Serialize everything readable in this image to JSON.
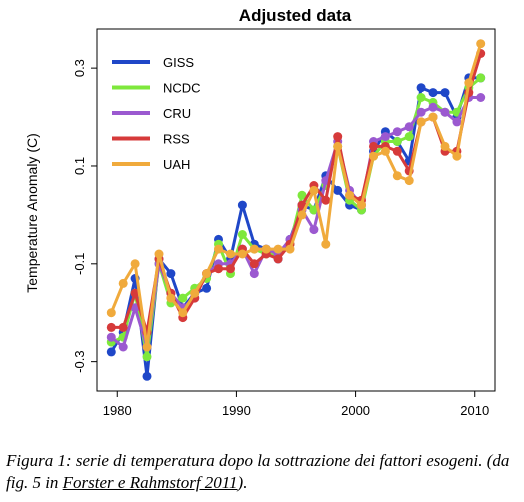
{
  "chart_data": {
    "type": "line",
    "title": "Adjusted data",
    "xlabel": "",
    "ylabel": "Temperature Anomaly (C)",
    "xlim": [
      1978.3,
      2011.7
    ],
    "ylim": [
      -0.36,
      0.38
    ],
    "x_ticks": [
      1980,
      1990,
      2000,
      2010
    ],
    "y_ticks": [
      -0.3,
      -0.1,
      0.1,
      0.3
    ],
    "x_tick_labels": [
      "1980",
      "1990",
      "2000",
      "2010"
    ],
    "y_tick_labels": [
      "-0.3",
      "-0.1",
      "0.1",
      "0.3"
    ],
    "grid": false,
    "legend_position": "top-left",
    "x": [
      1979.5,
      1980.5,
      1981.5,
      1982.5,
      1983.5,
      1984.5,
      1985.5,
      1986.5,
      1987.5,
      1988.5,
      1989.5,
      1990.5,
      1991.5,
      1992.5,
      1993.5,
      1994.5,
      1995.5,
      1996.5,
      1997.5,
      1998.5,
      1999.5,
      2000.5,
      2001.5,
      2002.5,
      2003.5,
      2004.5,
      2005.5,
      2006.5,
      2007.5,
      2008.5,
      2009.5,
      2010.5
    ],
    "series": [
      {
        "name": "GISS",
        "color": "#1f47c8",
        "values": [
          -0.28,
          -0.24,
          -0.13,
          -0.33,
          -0.09,
          -0.12,
          -0.19,
          -0.16,
          -0.15,
          -0.05,
          -0.09,
          0.02,
          -0.06,
          -0.07,
          -0.09,
          -0.05,
          0.02,
          0.01,
          0.08,
          0.05,
          0.02,
          0.01,
          0.13,
          0.17,
          0.15,
          0.11,
          0.26,
          0.25,
          0.25,
          0.2,
          0.28,
          0.28
        ]
      },
      {
        "name": "NCDC",
        "color": "#7ee83c",
        "values": [
          -0.26,
          -0.25,
          -0.16,
          -0.29,
          -0.1,
          -0.18,
          -0.17,
          -0.15,
          -0.13,
          -0.06,
          -0.12,
          -0.04,
          -0.07,
          -0.08,
          -0.08,
          -0.06,
          0.04,
          0.01,
          0.06,
          0.14,
          0.03,
          0.01,
          0.12,
          0.15,
          0.15,
          0.16,
          0.24,
          0.23,
          0.21,
          0.21,
          0.26,
          0.28
        ]
      },
      {
        "name": "CRU",
        "color": "#9b59d0",
        "values": [
          -0.25,
          -0.27,
          -0.19,
          -0.27,
          -0.1,
          -0.16,
          -0.19,
          -0.17,
          -0.12,
          -0.1,
          -0.1,
          -0.07,
          -0.12,
          -0.07,
          -0.08,
          -0.05,
          0.01,
          -0.03,
          0.07,
          0.15,
          0.05,
          0.02,
          0.15,
          0.16,
          0.17,
          0.18,
          0.21,
          0.22,
          0.21,
          0.19,
          0.24,
          0.24
        ]
      },
      {
        "name": "RSS",
        "color": "#d63a3a",
        "values": [
          -0.23,
          -0.23,
          -0.16,
          -0.24,
          -0.09,
          -0.16,
          -0.21,
          -0.17,
          -0.12,
          -0.11,
          -0.11,
          -0.07,
          -0.1,
          -0.08,
          -0.09,
          -0.06,
          0.02,
          0.06,
          0.03,
          0.16,
          0.04,
          0.03,
          0.14,
          0.14,
          0.13,
          0.09,
          0.19,
          0.2,
          0.13,
          0.13,
          0.25,
          0.33
        ]
      },
      {
        "name": "UAH",
        "color": "#f0aa3c",
        "values": [
          -0.2,
          -0.14,
          -0.1,
          -0.27,
          -0.08,
          -0.17,
          -0.2,
          -0.16,
          -0.12,
          -0.07,
          -0.08,
          -0.08,
          -0.07,
          -0.07,
          -0.07,
          -0.07,
          0.0,
          0.05,
          -0.06,
          0.14,
          0.04,
          0.02,
          0.12,
          0.13,
          0.08,
          0.07,
          0.19,
          0.2,
          0.14,
          0.12,
          0.27,
          0.35
        ]
      }
    ]
  },
  "caption": {
    "text_before_link": "Figura 1: serie di temperatura dopo la sottrazione dei fattori esogeni. (da fig. 5 in ",
    "link_text": "Forster e Rahmstorf 2011",
    "text_after_link": ")."
  }
}
